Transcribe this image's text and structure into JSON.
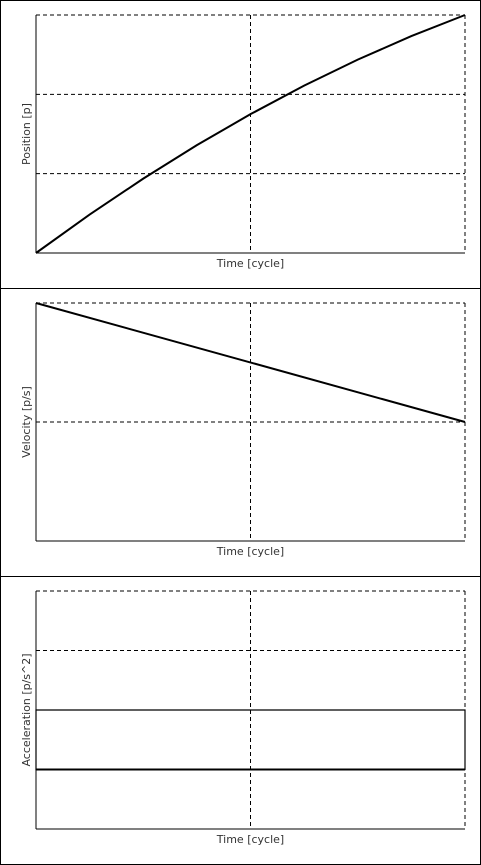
{
  "chart_data": [
    {
      "type": "line",
      "ylabel": "Position [p]",
      "xlabel": "Time [cycle]",
      "x": [
        0,
        0.25,
        0.5,
        0.75,
        1,
        1.25,
        1.5,
        1.75,
        2
      ],
      "series": [
        {
          "color": "#000000",
          "values": [
            0,
            0.484375,
            0.9375,
            1.359375,
            1.75,
            2.109375,
            2.4375,
            2.734375,
            3
          ]
        }
      ],
      "xlim": [
        0,
        2
      ],
      "xticks": [
        1
      ],
      "ylim": [
        0,
        3
      ],
      "yticks": [
        1,
        2
      ],
      "grid": true
    },
    {
      "type": "line",
      "ylabel": "Velocity [p/s]",
      "xlabel": "Time [cycle]",
      "x": [
        0,
        2
      ],
      "series": [
        {
          "color": "#000000",
          "values": [
            2,
            1
          ]
        }
      ],
      "xlim": [
        0,
        2
      ],
      "xticks": [
        1
      ],
      "ylim": [
        0,
        2
      ],
      "yticks": [
        1
      ],
      "grid": true
    },
    {
      "type": "area",
      "ylabel": "Acceleration [p/s^2]",
      "xlabel": "Time [cycle]",
      "x": [
        0,
        2
      ],
      "series": [
        {
          "color": "#000000",
          "values": [
            -0.5,
            -0.5
          ]
        }
      ],
      "xlim": [
        0,
        2
      ],
      "xticks": [
        1
      ],
      "ylim": [
        -1,
        1
      ],
      "yticks": [
        -0.5,
        0,
        0.5
      ],
      "grid": true
    }
  ]
}
